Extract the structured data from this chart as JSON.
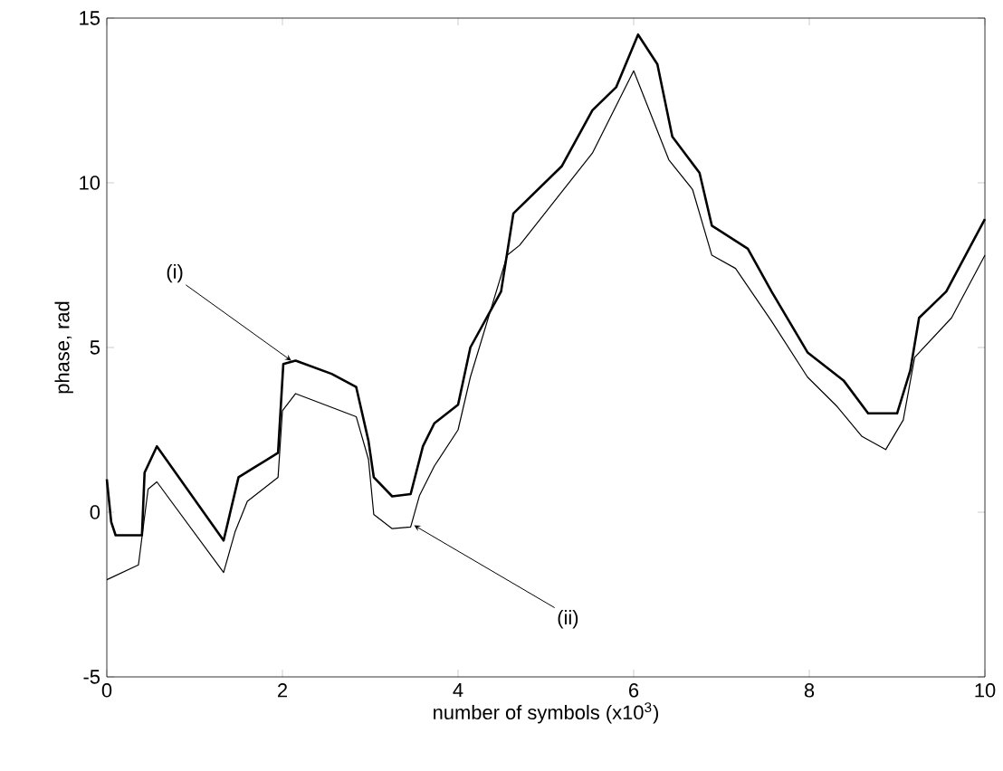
{
  "chart_data": {
    "type": "line",
    "xlabel": "number of symbols (x10$^{3}$)",
    "ylabel": "phase, rad",
    "xlim": [
      0,
      10
    ],
    "ylim": [
      -5,
      15
    ],
    "xticks": [
      0,
      2,
      4,
      6,
      8,
      10
    ],
    "yticks": [
      -5,
      0,
      5,
      10,
      15
    ],
    "grid": false,
    "legend": false,
    "marker": "none",
    "line_style": "solid",
    "annotations": [
      {
        "text": "(i)",
        "x": 2.1,
        "y": 4.6
      },
      {
        "text": "(ii)",
        "x": 3.5,
        "y": -0.4
      }
    ],
    "series": [
      {
        "color": "#000000",
        "x": [
          0,
          0.05,
          0.1,
          0.4,
          0.43,
          0.57,
          1.33,
          1.5,
          1.67,
          1.95,
          2.01,
          2.15,
          2.56,
          2.84,
          2.98,
          3.04,
          3.25,
          3.46,
          3.6,
          3.73,
          4.0,
          4.14,
          4.49,
          4.63,
          5.18,
          5.53,
          5.8,
          6.05,
          6.27,
          6.44,
          6.75,
          6.89,
          7.3,
          7.57,
          7.98,
          8.39,
          8.67,
          9.0,
          9.15,
          9.25,
          9.56,
          9.84,
          10.0
        ],
        "values": [
          1.0,
          -0.3,
          -0.7,
          -0.7,
          1.2,
          2.0,
          -0.86,
          1.06,
          1.34,
          1.8,
          4.5,
          4.6,
          4.2,
          3.8,
          2.16,
          1.06,
          0.48,
          0.55,
          2.0,
          2.7,
          3.26,
          5.0,
          6.7,
          9.07,
          10.5,
          12.2,
          12.9,
          14.5,
          13.6,
          11.4,
          10.3,
          8.7,
          8.0,
          6.7,
          4.85,
          4.0,
          3.0,
          3.0,
          4.3,
          5.9,
          6.7,
          8.1,
          8.9
        ]
      },
      {
        "color": "#000000",
        "x": [
          0,
          0.36,
          0.47,
          0.57,
          1.33,
          1.46,
          1.6,
          1.95,
          2.0,
          2.15,
          2.84,
          2.98,
          3.04,
          3.25,
          3.46,
          3.56,
          3.73,
          4.0,
          4.14,
          4.56,
          4.7,
          5.53,
          6.0,
          6.4,
          6.67,
          6.89,
          7.16,
          7.57,
          7.98,
          8.32,
          8.6,
          8.87,
          9.07,
          9.2,
          9.62,
          10.0
        ],
        "values": [
          -2.05,
          -1.6,
          0.7,
          0.92,
          -1.83,
          -0.6,
          0.33,
          1.06,
          3.08,
          3.6,
          2.9,
          1.6,
          -0.07,
          -0.5,
          -0.45,
          0.5,
          1.4,
          2.5,
          4.1,
          7.8,
          8.1,
          10.9,
          13.4,
          10.7,
          9.8,
          7.8,
          7.4,
          5.8,
          4.1,
          3.2,
          2.3,
          1.9,
          2.8,
          4.7,
          5.9,
          7.8
        ]
      }
    ]
  }
}
